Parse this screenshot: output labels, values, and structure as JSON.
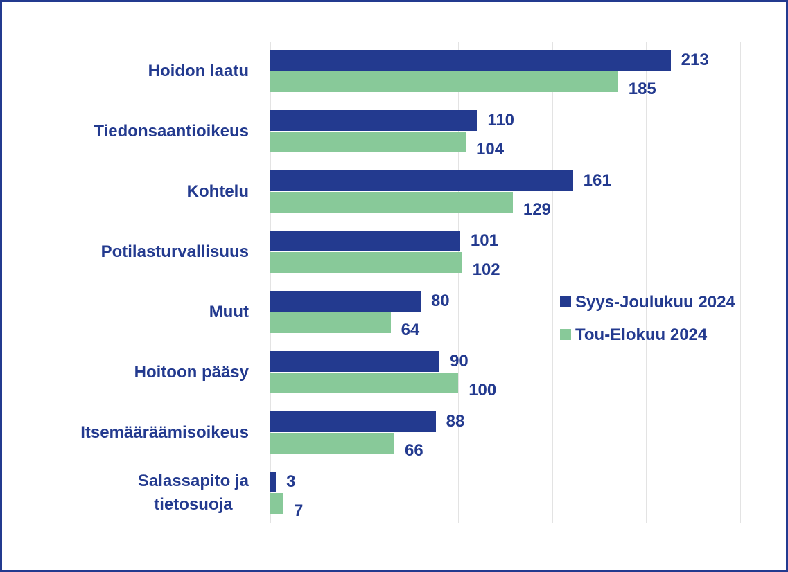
{
  "chart_data": {
    "type": "bar",
    "orientation": "horizontal",
    "categories": [
      "Hoidon laatu",
      "Tiedonsaantioikeus",
      "Kohtelu",
      "Potilasturvallisuus",
      "Muut",
      "Hoitoon pääsy",
      "Itsemääräämisoikeus",
      "Salassapito ja\ntietosuoja"
    ],
    "series": [
      {
        "name": "Syys-Joulukuu 2024",
        "color": "#233a8f",
        "values": [
          213,
          110,
          161,
          101,
          80,
          90,
          88,
          3
        ]
      },
      {
        "name": "Tou-Elokuu 2024",
        "color": "#88c999",
        "values": [
          185,
          104,
          129,
          102,
          64,
          100,
          66,
          7
        ]
      }
    ],
    "xlim": [
      0,
      250
    ],
    "xticks": [
      0,
      50,
      100,
      150,
      200,
      250
    ],
    "grid": true,
    "legend": "right"
  }
}
